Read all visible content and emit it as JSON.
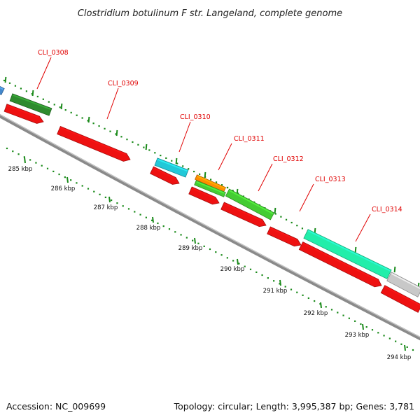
{
  "title": "Clostridium botulinum F str. Langeland, complete genome",
  "accession": "Accession: NC_009699",
  "topology": "Topology: circular; Length: 3,995,387 bp; Genes: 3,781",
  "scale_labels": [
    "285 kbp",
    "286 kbp",
    "287 kbp",
    "288 kbp",
    "289 kbp",
    "290 kbp",
    "291 kbp",
    "292 kbp",
    "293 kbp",
    "294 kbp"
  ],
  "gene_labels": [
    "CLI_0308",
    "CLI_0309",
    "CLI_0310",
    "CLI_0311",
    "CLI_0312",
    "CLI_0313",
    "CLI_0314"
  ],
  "colors": {
    "cds_red": "#ee1111",
    "rrna_green": "#2e8b2e",
    "light_green": "#44cc33",
    "cyan": "#22c8d8",
    "aqua_green": "#22eeaa",
    "orange": "#ff8c00",
    "grey": "#c8c8c8",
    "blue": "#4488cc",
    "tick_green": "#1a8a1a",
    "label_red": "#e00000"
  }
}
